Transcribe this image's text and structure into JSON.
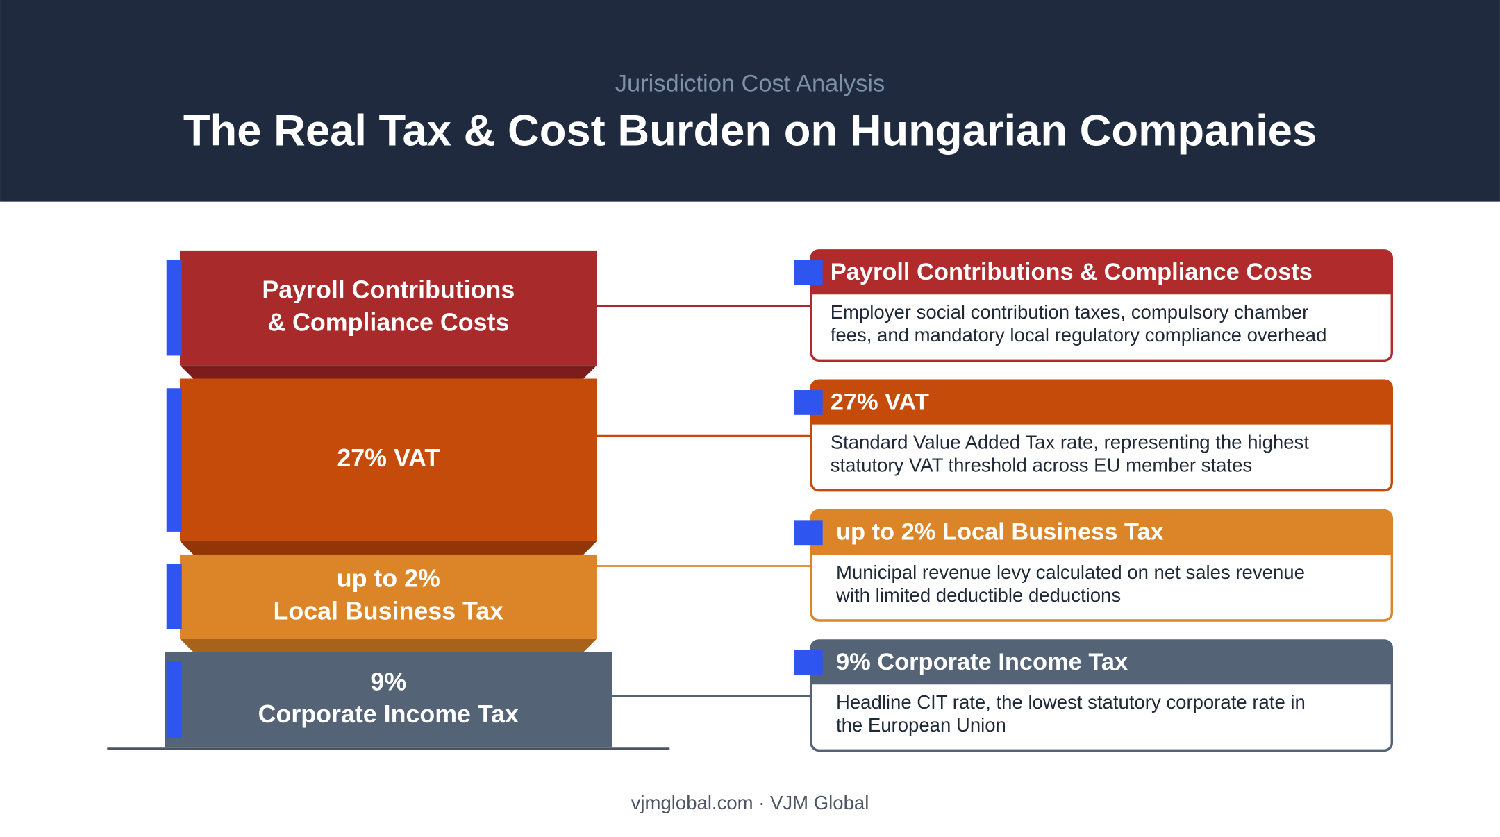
{
  "header": {
    "subtitle": "Jurisdiction Cost Analysis",
    "title": "The Real Tax & Cost Burden on Hungarian Companies"
  },
  "stack": [
    {
      "lines": [
        "Payroll Contributions",
        "& Compliance Costs"
      ]
    },
    {
      "lines": [
        "27% VAT"
      ]
    },
    {
      "lines": [
        "up to 2%",
        "Local Business Tax"
      ]
    },
    {
      "lines": [
        "9%",
        "Corporate Income Tax"
      ]
    }
  ],
  "cards": [
    {
      "title": "Payroll Contributions & Compliance Costs",
      "lines": [
        "Employer social contribution taxes, compulsory chamber",
        "fees, and mandatory local regulatory compliance overhead"
      ]
    },
    {
      "title": "27% VAT",
      "lines": [
        "Standard Value Added Tax rate, representing the highest",
        "statutory VAT threshold across EU member states"
      ]
    },
    {
      "title": "up to 2% Local Business Tax",
      "lines": [
        "Municipal revenue levy calculated on net sales revenue",
        "with limited deductible deductions"
      ]
    },
    {
      "title": "9% Corporate Income Tax",
      "lines": [
        "Headline CIT rate, the lowest statutory corporate rate in",
        "the European Union"
      ]
    }
  ],
  "footer": "vjmglobal.com · VJM Global"
}
